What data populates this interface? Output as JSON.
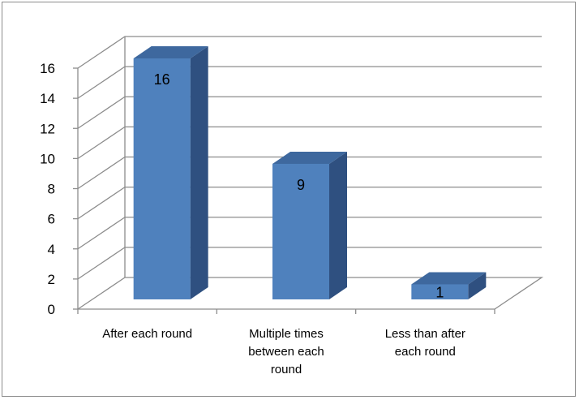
{
  "chart_data": {
    "type": "bar",
    "style": "3d-column",
    "categories": [
      [
        "After each round"
      ],
      [
        "Multiple times",
        "between each",
        "round"
      ],
      [
        "Less than after",
        "each round"
      ]
    ],
    "values": [
      16,
      9,
      1
    ],
    "data_labels": [
      "16",
      "9",
      "1"
    ],
    "ylim": [
      0,
      16
    ],
    "yticks": [
      "0",
      "2",
      "4",
      "6",
      "8",
      "10",
      "12",
      "14",
      "16"
    ],
    "grid": true,
    "legend": "none",
    "title": "",
    "xlabel": "",
    "ylabel": ""
  },
  "colors": {
    "bar_front": "#4f81bd",
    "bar_side": "#2f5080",
    "bar_top": "#3e689e",
    "grid": "#8c8c8c",
    "axis": "#8c8c8c",
    "frame": "#8c8c8c"
  }
}
